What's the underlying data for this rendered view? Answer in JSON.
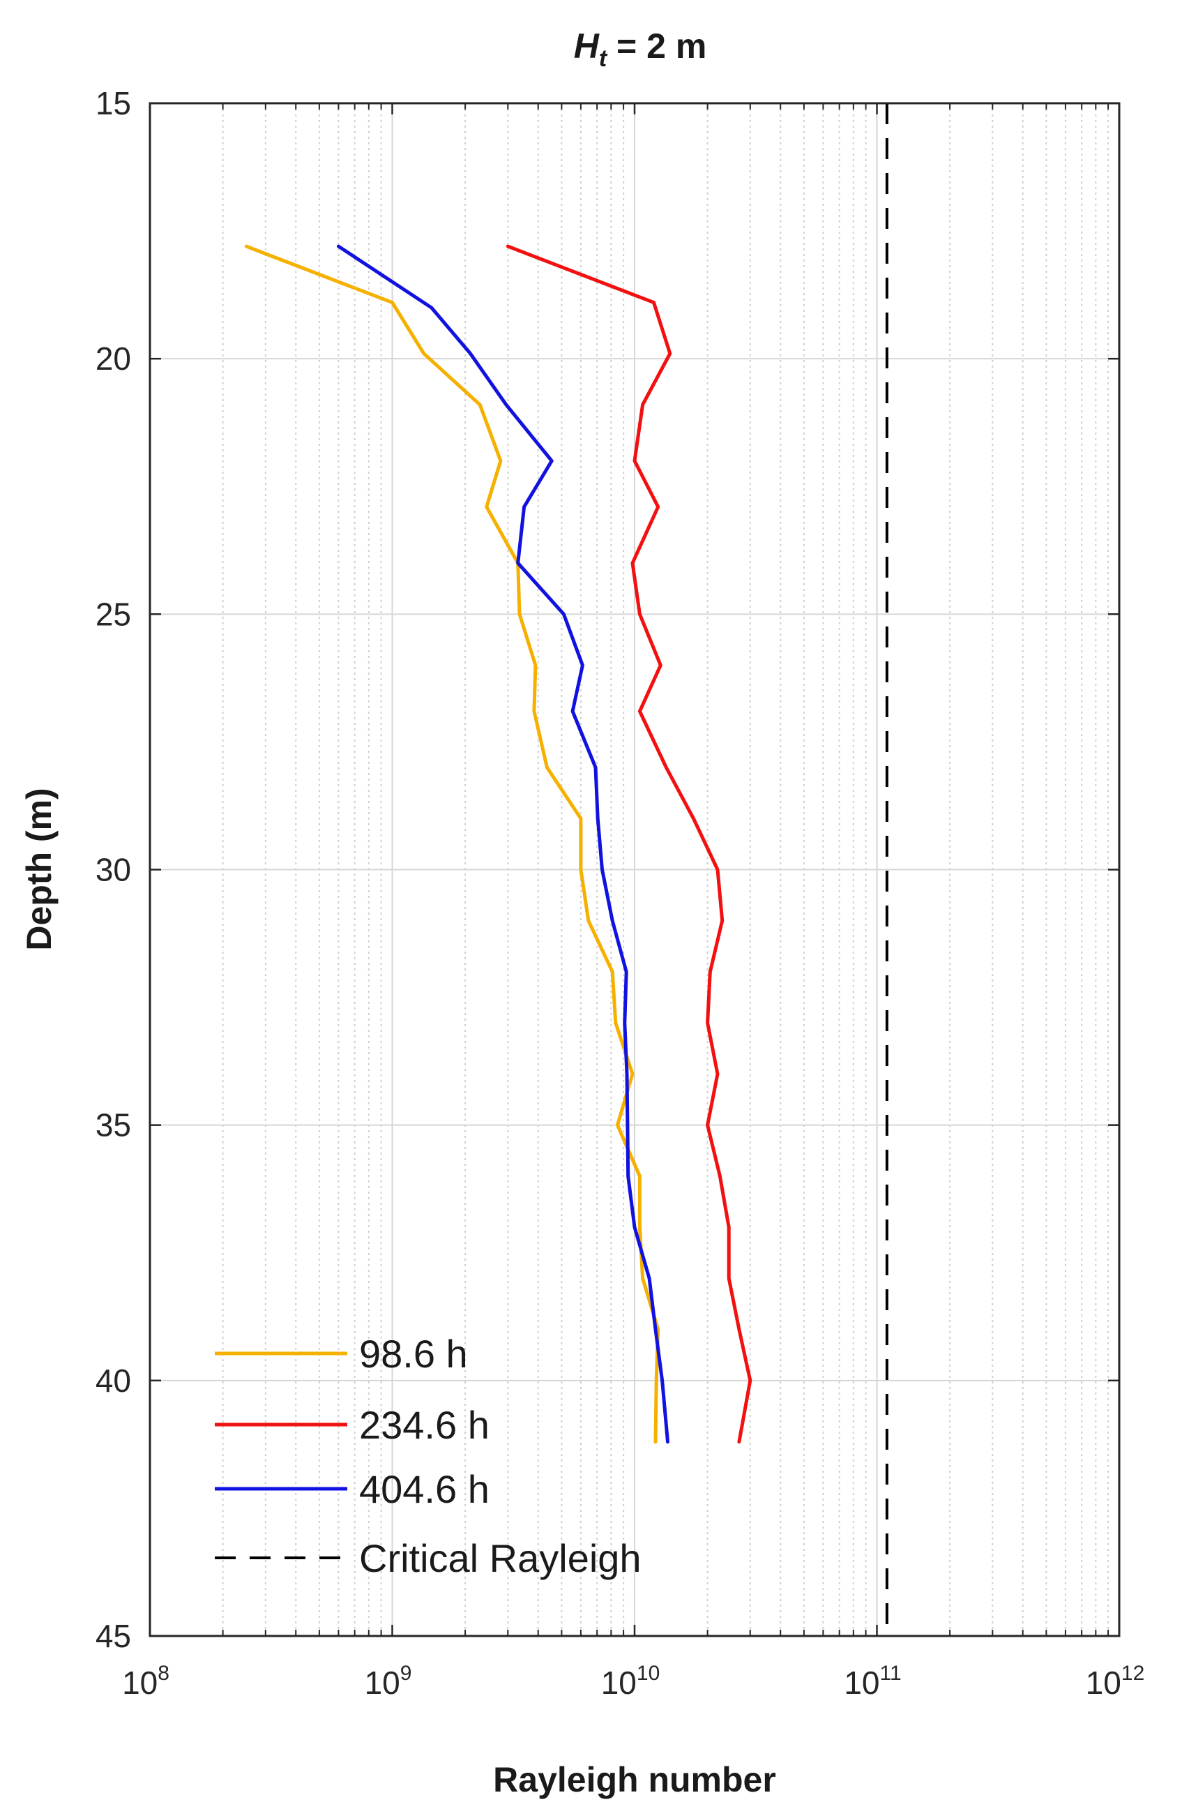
{
  "chart_data": {
    "type": "line",
    "title": "H_t = 2 m",
    "title_parts": {
      "main": "H",
      "sub": "t",
      "rest": " = 2 m"
    },
    "xlabel": "Rayleigh number",
    "ylabel": "Depth (m)",
    "x_scale": "log",
    "xlim": [
      100000000,
      1000000000000
    ],
    "ylim": [
      45,
      15
    ],
    "y_reversed": true,
    "x_ticks": [
      {
        "value": 100000000,
        "base": "10",
        "exp": "8"
      },
      {
        "value": 1000000000,
        "base": "10",
        "exp": "9"
      },
      {
        "value": 10000000000,
        "base": "10",
        "exp": "10"
      },
      {
        "value": 100000000000,
        "base": "10",
        "exp": "11"
      },
      {
        "value": 1000000000000,
        "base": "10",
        "exp": "12"
      }
    ],
    "y_ticks": [
      15,
      20,
      25,
      30,
      35,
      40,
      45
    ],
    "grid": true,
    "legend_position": "bottom-left",
    "series": [
      {
        "name": "98.6 h",
        "color": "#F5B000",
        "dash": "solid",
        "points": [
          [
            250000000,
            17.8
          ],
          [
            1000000000,
            18.9
          ],
          [
            1350000000,
            19.9
          ],
          [
            2300000000,
            20.9
          ],
          [
            2800000000,
            22.0
          ],
          [
            2450000000,
            22.9
          ],
          [
            3300000000,
            24.0
          ],
          [
            3350000000,
            25.0
          ],
          [
            3900000000,
            26.0
          ],
          [
            3850000000,
            26.9
          ],
          [
            4350000000,
            28.0
          ],
          [
            6000000000,
            29.0
          ],
          [
            6000000000,
            30.0
          ],
          [
            6450000000,
            31.0
          ],
          [
            8100000000,
            32.0
          ],
          [
            8350000000,
            33.0
          ],
          [
            9800000000,
            34.0
          ],
          [
            8500000000,
            35.0
          ],
          [
            10500000000,
            36.0
          ],
          [
            10500000000,
            37.0
          ],
          [
            10800000000,
            38.0
          ],
          [
            12500000000,
            39.0
          ],
          [
            12300000000,
            40.0
          ],
          [
            12200000000,
            41.2
          ]
        ]
      },
      {
        "name": "234.6 h",
        "color": "#F21010",
        "dash": "solid",
        "points": [
          [
            3000000000,
            17.8
          ],
          [
            12000000000,
            18.9
          ],
          [
            14000000000,
            19.9
          ],
          [
            10800000000,
            20.9
          ],
          [
            10000000000,
            22.0
          ],
          [
            12500000000,
            22.9
          ],
          [
            9800000000,
            24.0
          ],
          [
            10500000000,
            25.0
          ],
          [
            12800000000,
            26.0
          ],
          [
            10500000000,
            26.9
          ],
          [
            13500000000,
            28.0
          ],
          [
            17500000000,
            29.0
          ],
          [
            22000000000,
            30.0
          ],
          [
            23000000000,
            31.0
          ],
          [
            20500000000,
            32.0
          ],
          [
            20000000000,
            33.0
          ],
          [
            22000000000,
            34.0
          ],
          [
            20000000000,
            35.0
          ],
          [
            22500000000,
            36.0
          ],
          [
            24500000000,
            37.0
          ],
          [
            24500000000,
            38.0
          ],
          [
            27000000000,
            39.0
          ],
          [
            30000000000,
            40.0
          ],
          [
            27000000000,
            41.2
          ]
        ]
      },
      {
        "name": "404.6 h",
        "color": "#1212E0",
        "dash": "solid",
        "points": [
          [
            600000000,
            17.8
          ],
          [
            1450000000,
            19.0
          ],
          [
            2100000000,
            19.9
          ],
          [
            2950000000,
            20.9
          ],
          [
            4550000000,
            22.0
          ],
          [
            3500000000,
            22.9
          ],
          [
            3300000000,
            24.0
          ],
          [
            5100000000,
            25.0
          ],
          [
            6100000000,
            26.0
          ],
          [
            5550000000,
            26.9
          ],
          [
            6900000000,
            28.0
          ],
          [
            7050000000,
            29.0
          ],
          [
            7350000000,
            30.0
          ],
          [
            8100000000,
            31.0
          ],
          [
            9250000000,
            32.0
          ],
          [
            9100000000,
            33.0
          ],
          [
            9300000000,
            34.0
          ],
          [
            9350000000,
            35.0
          ],
          [
            9400000000,
            36.0
          ],
          [
            10000000000,
            37.0
          ],
          [
            11500000000,
            38.0
          ],
          [
            12200000000,
            39.0
          ],
          [
            13000000000,
            40.0
          ],
          [
            13700000000,
            41.2
          ]
        ]
      },
      {
        "name": "Critical Rayleigh",
        "color": "#000000",
        "dash": "dashed",
        "points": [
          [
            110000000000,
            15
          ],
          [
            110000000000,
            45
          ]
        ]
      }
    ]
  }
}
